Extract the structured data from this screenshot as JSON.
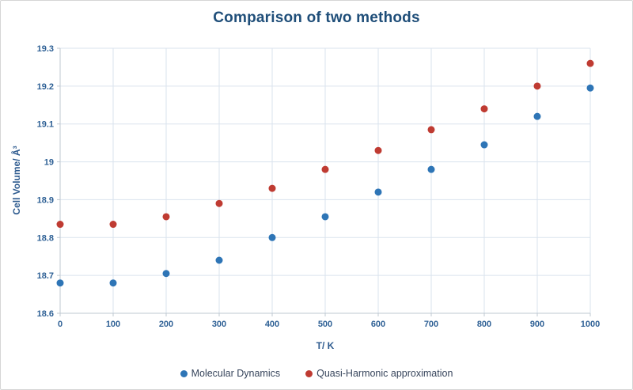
{
  "chart_data": {
    "type": "scatter",
    "title": "Comparison of two methods",
    "xlabel": "T/ K",
    "ylabel": "Cell Volume/ Å³",
    "xlim": [
      0,
      1000
    ],
    "ylim": [
      18.6,
      19.3
    ],
    "xticks": [
      0,
      100,
      200,
      300,
      400,
      500,
      600,
      700,
      800,
      900,
      1000
    ],
    "yticks": [
      18.6,
      18.7,
      18.8,
      18.9,
      19,
      19.1,
      19.2,
      19.3
    ],
    "grid": true,
    "legend_position": "bottom",
    "x": [
      0,
      100,
      200,
      300,
      400,
      500,
      600,
      700,
      800,
      900,
      1000
    ],
    "series": [
      {
        "name": "Molecular Dynamics",
        "color": "#2E75B6",
        "values": [
          18.68,
          18.68,
          18.705,
          18.74,
          18.8,
          18.855,
          18.92,
          18.98,
          19.045,
          19.12,
          19.195
        ]
      },
      {
        "name": "Quasi-Harmonic approximation",
        "color": "#BF3B32",
        "values": [
          18.835,
          18.835,
          18.855,
          18.89,
          18.93,
          18.98,
          19.03,
          19.085,
          19.14,
          19.2,
          19.26
        ]
      }
    ]
  },
  "styles": {
    "title_color": "#1F4E79",
    "axis_text_color": "#2E6095",
    "grid_color": "#DAE3EE",
    "axis_line_color": "#BFC8D2"
  }
}
